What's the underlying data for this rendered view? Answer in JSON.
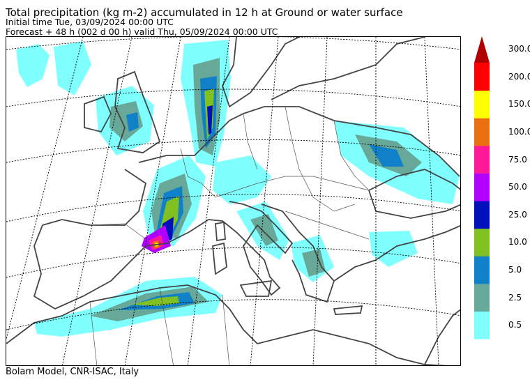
{
  "header": {
    "title": "Total precipitation (kg m-2) accumulated in  12 h at Ground or water surface",
    "initial_time": "Initial time  Tue, 03/09/2024  00:00 UTC",
    "forecast": "Forecast  +  48 h  (002 d 00 h)  valid Thu, 05/09/2024 00:00 UTC"
  },
  "footer": {
    "credit": "Bolam Model, CNR-ISAC, Italy"
  },
  "colorbar": {
    "levels": [
      {
        "label": "0.5",
        "color": "#80ffff"
      },
      {
        "label": "2.5",
        "color": "#68a898"
      },
      {
        "label": "5.0",
        "color": "#1080c8"
      },
      {
        "label": "10.0",
        "color": "#80c020"
      },
      {
        "label": "25.0",
        "color": "#0010b8"
      },
      {
        "label": "50.0",
        "color": "#b000ff"
      },
      {
        "label": "75.0",
        "color": "#ff1898"
      },
      {
        "label": "100.0",
        "color": "#e87010"
      },
      {
        "label": "150.0",
        "color": "#ffff00"
      },
      {
        "label": "200.0",
        "color": "#ff0000"
      },
      {
        "label": "300.0",
        "color": "#b00000"
      }
    ]
  },
  "map": {
    "coastline_color": "#444444",
    "border_color": "#555555",
    "graticule_style": "dotted"
  }
}
